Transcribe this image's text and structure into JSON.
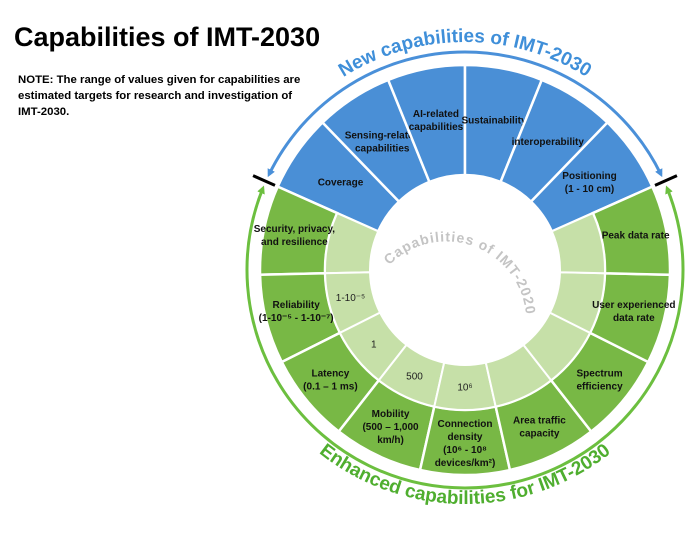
{
  "title": "Capabilities of IMT-2030",
  "note": "NOTE: The range of values given for capabilities are estimated targets for research and investigation of IMT-2030.",
  "new_arc_label": "New capabilities of IMT-2030",
  "enhanced_arc_label": "Enhanced capabilities for IMT-2030",
  "center_label": "Capabilities of IMT-2020",
  "new_capabilities": [
    {
      "lines": [
        "Coverage"
      ]
    },
    {
      "lines": [
        "Sensing-related",
        "capabilities"
      ]
    },
    {
      "lines": [
        "AI-related",
        "capabilities"
      ]
    },
    {
      "lines": [
        "Sustainability"
      ]
    },
    {
      "lines": [
        "interoperability"
      ]
    },
    {
      "lines": [
        "Positioning",
        "(1 - 10 cm)"
      ]
    }
  ],
  "enhanced_capabilities": [
    {
      "lines": [
        "Security, privacy,",
        "and resilience"
      ]
    },
    {
      "lines": [
        "Reliability",
        "(1-10⁻⁵ - 1-10⁻⁷)"
      ],
      "imt2020": "1-10⁻⁵"
    },
    {
      "lines": [
        "Latency",
        "(0.1 – 1 ms)"
      ],
      "imt2020": "1"
    },
    {
      "lines": [
        "Mobility",
        "(500 – 1,000",
        "km/h)"
      ],
      "imt2020": "500"
    },
    {
      "lines": [
        "Connection",
        "density",
        "(10⁶ -  10⁸",
        "devices/km²)"
      ],
      "imt2020": "10⁶"
    },
    {
      "lines": [
        "Area traffic",
        "capacity"
      ]
    },
    {
      "lines": [
        "Spectrum",
        "efficiency"
      ]
    },
    {
      "lines": [
        "User experienced",
        "data rate"
      ]
    },
    {
      "lines": [
        "Peak data rate"
      ]
    }
  ]
}
